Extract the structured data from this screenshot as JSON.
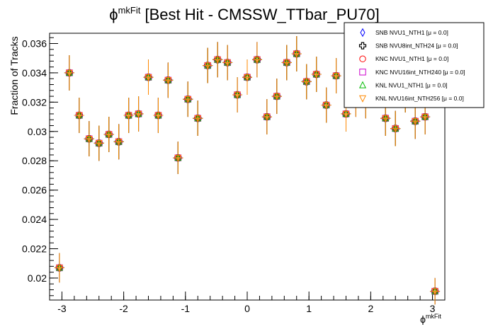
{
  "chart_data": {
    "type": "scatter",
    "title": {
      "symbol": "ϕ",
      "superscript": "mkFit",
      "text": " [Best Hit - CMSSW_TTbar_PU70]"
    },
    "xlabel": {
      "symbol": "ϕ",
      "superscript": "mkFit"
    },
    "ylabel": "Fraction of Tracks",
    "xlim": [
      -3.2,
      3.2
    ],
    "ylim": [
      0.0185,
      0.0367
    ],
    "x_ticks": [
      -3,
      -2,
      -1,
      0,
      1,
      2,
      3
    ],
    "x_tick_labels": [
      "-3",
      "-2",
      "-1",
      "0",
      "1",
      "2",
      "3"
    ],
    "y_ticks": [
      0.02,
      0.022,
      0.024,
      0.026,
      0.028,
      0.03,
      0.032,
      0.034,
      0.036
    ],
    "y_tick_labels": [
      "0.02",
      "0.022",
      "0.024",
      "0.026",
      "0.028",
      "0.03",
      "0.032",
      "0.034",
      "0.036"
    ],
    "grid": false,
    "legend_position": "top-right",
    "x": [
      -3.04,
      -2.88,
      -2.72,
      -2.56,
      -2.4,
      -2.24,
      -2.08,
      -1.92,
      -1.76,
      -1.6,
      -1.44,
      -1.28,
      -1.12,
      -0.96,
      -0.8,
      -0.64,
      -0.48,
      -0.32,
      -0.16,
      0.0,
      0.16,
      0.32,
      0.48,
      0.64,
      0.8,
      0.96,
      1.12,
      1.28,
      1.44,
      1.6,
      1.76,
      1.92,
      2.08,
      2.24,
      2.4,
      2.56,
      2.72,
      2.88,
      3.04
    ],
    "x_errors": 0.08,
    "y_values": [
      0.0207,
      0.034,
      0.0311,
      0.0295,
      0.0292,
      0.0298,
      0.0293,
      0.0311,
      0.0312,
      0.0337,
      0.0311,
      0.0335,
      0.0282,
      0.0322,
      0.0309,
      0.0345,
      0.0349,
      0.0347,
      0.0325,
      0.0337,
      0.0349,
      0.031,
      0.0324,
      0.0347,
      0.0353,
      0.0334,
      0.0339,
      0.0318,
      0.0338,
      0.0312,
      0.0322,
      0.0321,
      0.0331,
      0.0309,
      0.0302,
      0.0325,
      0.0307,
      0.031,
      0.0191
    ],
    "y_errors": [
      0.001,
      0.0012,
      0.0012,
      0.0012,
      0.0012,
      0.0012,
      0.0012,
      0.0012,
      0.0012,
      0.0012,
      0.0012,
      0.0012,
      0.0011,
      0.0012,
      0.0012,
      0.0012,
      0.0012,
      0.0012,
      0.0012,
      0.0012,
      0.0012,
      0.0012,
      0.0012,
      0.0012,
      0.0012,
      0.0012,
      0.0012,
      0.0012,
      0.0012,
      0.0012,
      0.0012,
      0.0012,
      0.0012,
      0.0012,
      0.0012,
      0.0012,
      0.0012,
      0.0012,
      0.0009
    ],
    "series": [
      {
        "name": "SNB NVU1_NTH1 [μ =  0.0]",
        "color": "#0000ff",
        "marker": "diamond-open"
      },
      {
        "name": "SNB NVU8int_NTH24 [μ =  0.0]",
        "color": "#000000",
        "marker": "cross-open"
      },
      {
        "name": "KNC NVU1_NTH1 [μ =  0.0]",
        "color": "#ff0000",
        "marker": "circle-open"
      },
      {
        "name": "KNC NVU16int_NTH240 [μ =  0.0]",
        "color": "#cc00cc",
        "marker": "square-open"
      },
      {
        "name": "KNL NVU1_NTH1 [μ =  0.0]",
        "color": "#00bb00",
        "marker": "triangle-up-open"
      },
      {
        "name": "KNL NVU16int_NTH256 [μ =  0.0]",
        "color": "#ff8800",
        "marker": "triangle-down-open"
      }
    ]
  }
}
